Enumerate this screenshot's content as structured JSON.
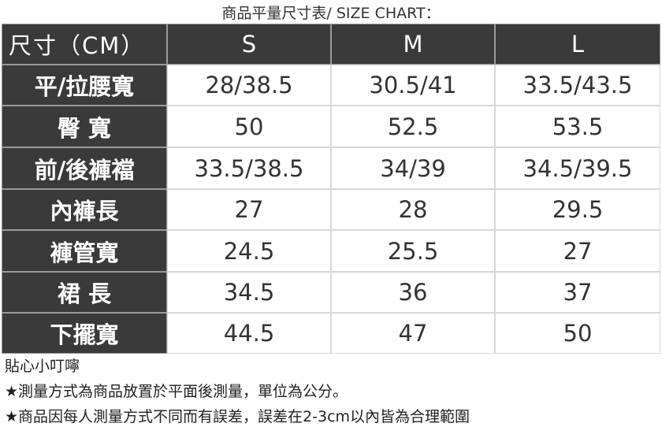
{
  "title": "商品平量尺寸表/ SIZE CHART：",
  "table": {
    "header": [
      "尺寸（CM）",
      "S",
      "M",
      "L"
    ],
    "rows": [
      [
        "平/拉腰寬",
        "28/38.5",
        "30.5/41",
        "33.5/43.5"
      ],
      [
        "臀 寬",
        "50",
        "52.5",
        "53.5"
      ],
      [
        "前/後褲襠",
        "33.5/38.5",
        "34/39",
        "34.5/39.5"
      ],
      [
        "內褲長",
        "27",
        "28",
        "29.5"
      ],
      [
        "褲管寬",
        "24.5",
        "25.5",
        "27"
      ],
      [
        "裙 長",
        "34.5",
        "36",
        "37"
      ],
      [
        "下擺寬",
        "44.5",
        "47",
        "50"
      ]
    ]
  },
  "notes": {
    "heading": "貼心小叮嚀",
    "lines": [
      "★測量方式為商品放置於平面後測量，單位為公分。",
      "★商品因每人測量方式不同而有誤差，誤差在2-3cm以內皆為合理範圍"
    ]
  }
}
